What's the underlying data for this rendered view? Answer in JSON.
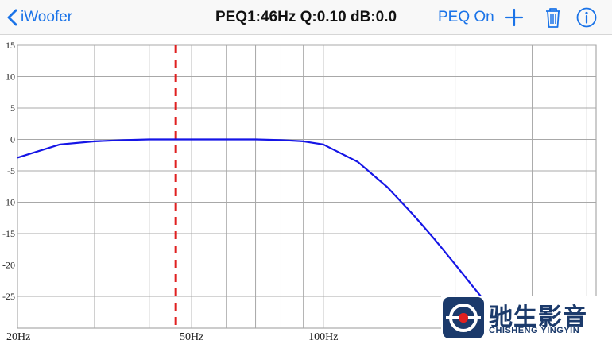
{
  "nav": {
    "back_label": "iWoofer",
    "title": "PEQ1:46Hz Q:0.10 dB:0.0",
    "peq_toggle": "PEQ On",
    "add_icon": "plus-icon",
    "delete_icon": "trash-icon",
    "info_icon": "info-icon",
    "accent_color": "#1a73e8"
  },
  "chart_data": {
    "type": "line",
    "y_ticks": [
      "15",
      "10",
      "5",
      "0",
      "-5",
      "-10",
      "-15",
      "-20",
      "-25"
    ],
    "x_ticks": [
      "20Hz",
      "50Hz",
      "100Hz"
    ],
    "xscale": "log",
    "ylim": [
      -30,
      15
    ],
    "grid": true,
    "peq_marker": {
      "frequency_hz": 46,
      "q": 0.1,
      "gain_db": 0.0,
      "color": "#e02020",
      "style": "dashed"
    },
    "series": [
      {
        "color": "#1515e6",
        "x": [
          20,
          25,
          30,
          35,
          40,
          50,
          60,
          70,
          80,
          90,
          100,
          120,
          140,
          160,
          180,
          200,
          220,
          240
        ],
        "y": [
          -2.9,
          -0.8,
          -0.3,
          -0.1,
          0.0,
          0.0,
          0.0,
          0.0,
          -0.1,
          -0.3,
          -0.8,
          -3.6,
          -7.6,
          -11.9,
          -16.0,
          -19.9,
          -23.5,
          -26.7
        ]
      }
    ]
  },
  "logo": {
    "name_cn": "驰生影音",
    "name_en": "CHISHENG YINGYIN"
  }
}
